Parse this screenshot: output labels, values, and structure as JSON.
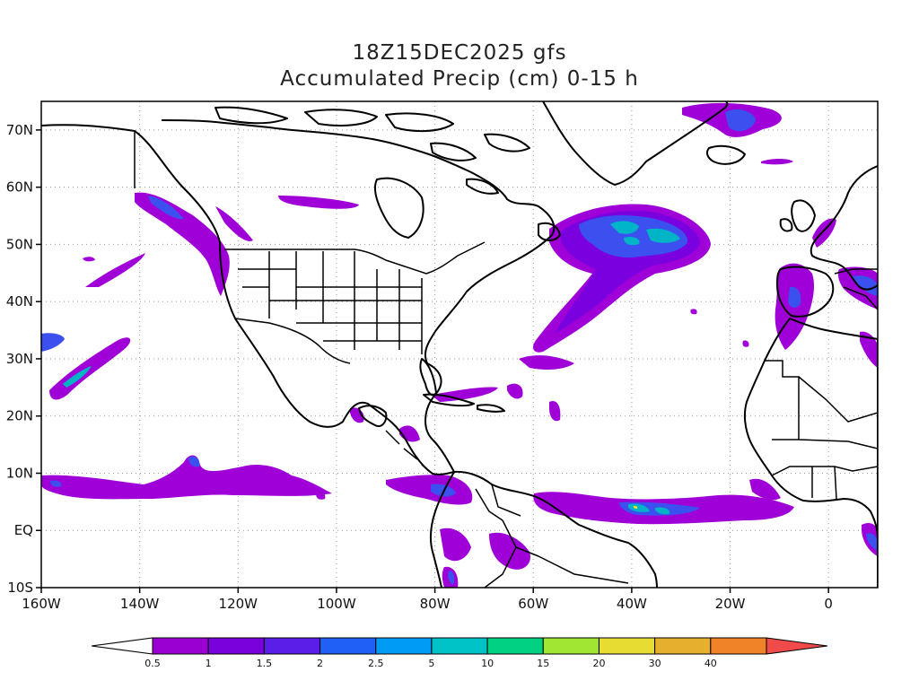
{
  "title": {
    "line1": "18Z15DEC2025 gfs",
    "line2": "Accumulated Precip (cm) 0-15 h"
  },
  "axes": {
    "lon_ticks": [
      "160W",
      "140W",
      "120W",
      "100W",
      "80W",
      "60W",
      "40W",
      "20W",
      "0"
    ],
    "lat_ticks": [
      "70N",
      "60N",
      "50N",
      "40N",
      "30N",
      "20N",
      "10N",
      "EQ",
      "10S"
    ],
    "lon_range": [
      -160,
      10
    ],
    "lat_range": [
      -10,
      75
    ],
    "grid": "dotted"
  },
  "colorbar": {
    "labels": [
      "0.5",
      "1",
      "1.5",
      "2",
      "2.5",
      "5",
      "10",
      "15",
      "20",
      "30",
      "40"
    ],
    "colors": [
      "#ffffff",
      "#9a00d2",
      "#7a00dc",
      "#5a1ee8",
      "#2060f4",
      "#009bf5",
      "#00c3c8",
      "#00d282",
      "#a0e632",
      "#e6dc32",
      "#e6af2d",
      "#f08228",
      "#f04a4a"
    ]
  },
  "precip_colors": {
    "light": "#a000d8",
    "medium": "#7a00e0",
    "heavy": "#3c50f0",
    "core": "#00b4c8",
    "peak": "#00d282"
  }
}
